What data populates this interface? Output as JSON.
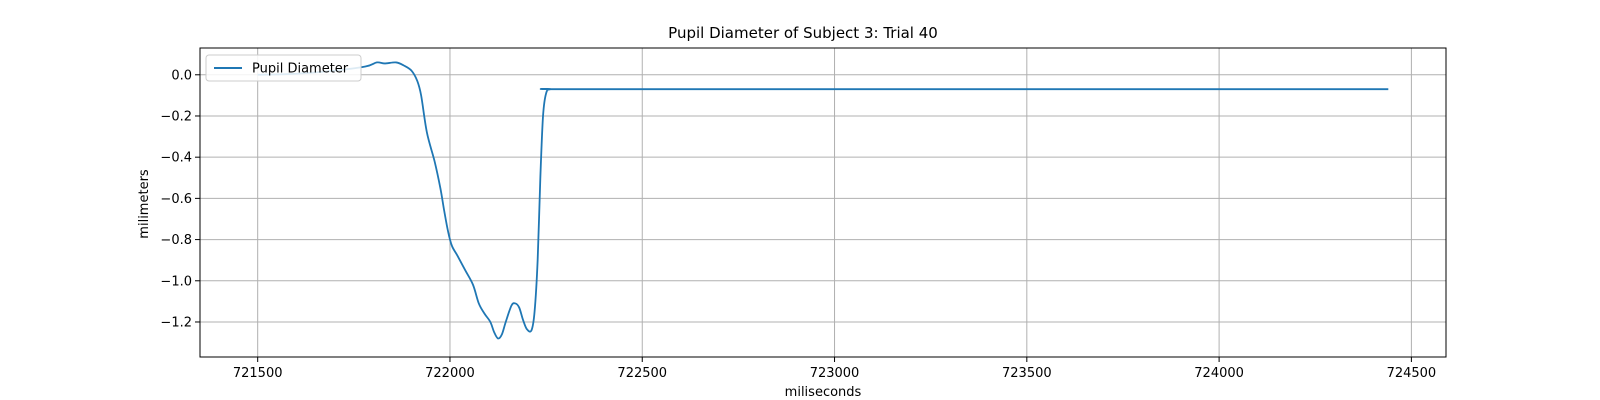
{
  "chart_data": {
    "type": "line",
    "title": "Pupil Diameter of Subject 3: Trial 40",
    "xlabel": "miliseconds",
    "ylabel": "milimeters",
    "xlim": [
      721350,
      724590
    ],
    "ylim": [
      -1.37,
      0.13
    ],
    "xticks": [
      721500,
      722000,
      722500,
      723000,
      723500,
      724000,
      724500
    ],
    "yticks": [
      0.0,
      -0.2,
      -0.4,
      -0.6,
      -0.8,
      -1.0,
      -1.2
    ],
    "xtick_labels": [
      "721500",
      "722000",
      "722500",
      "723000",
      "723500",
      "724000",
      "724500"
    ],
    "ytick_labels": [
      "0.0",
      "−0.2",
      "−0.4",
      "−0.6",
      "−0.8",
      "−1.0",
      "−1.2"
    ],
    "grid": true,
    "legend": {
      "placement": "top-left",
      "entries": [
        "Pupil Diameter"
      ]
    },
    "series": [
      {
        "name": "Pupil Diameter",
        "color": "#1f77b4",
        "points": [
          [
            721500,
            0.0
          ],
          [
            721600,
            0.005
          ],
          [
            721700,
            0.02
          ],
          [
            721780,
            0.04
          ],
          [
            721810,
            0.06
          ],
          [
            721830,
            0.055
          ],
          [
            721860,
            0.06
          ],
          [
            721880,
            0.045
          ],
          [
            721900,
            0.02
          ],
          [
            721915,
            -0.03
          ],
          [
            721925,
            -0.1
          ],
          [
            721940,
            -0.28
          ],
          [
            721960,
            -0.42
          ],
          [
            721975,
            -0.55
          ],
          [
            721985,
            -0.66
          ],
          [
            721995,
            -0.76
          ],
          [
            722005,
            -0.83
          ],
          [
            722020,
            -0.88
          ],
          [
            722040,
            -0.95
          ],
          [
            722060,
            -1.02
          ],
          [
            722075,
            -1.11
          ],
          [
            722090,
            -1.16
          ],
          [
            722105,
            -1.2
          ],
          [
            722115,
            -1.25
          ],
          [
            722125,
            -1.28
          ],
          [
            722135,
            -1.26
          ],
          [
            722145,
            -1.2
          ],
          [
            722160,
            -1.12
          ],
          [
            722170,
            -1.11
          ],
          [
            722180,
            -1.13
          ],
          [
            722190,
            -1.19
          ],
          [
            722200,
            -1.235
          ],
          [
            722212,
            -1.24
          ],
          [
            722220,
            -1.15
          ],
          [
            722228,
            -0.9
          ],
          [
            722235,
            -0.5
          ],
          [
            722242,
            -0.2
          ],
          [
            722250,
            -0.09
          ],
          [
            722262,
            -0.07
          ],
          [
            722300,
            -0.07
          ],
          [
            723000,
            -0.07
          ],
          [
            724000,
            -0.07
          ],
          [
            724440,
            -0.07
          ]
        ]
      }
    ]
  }
}
